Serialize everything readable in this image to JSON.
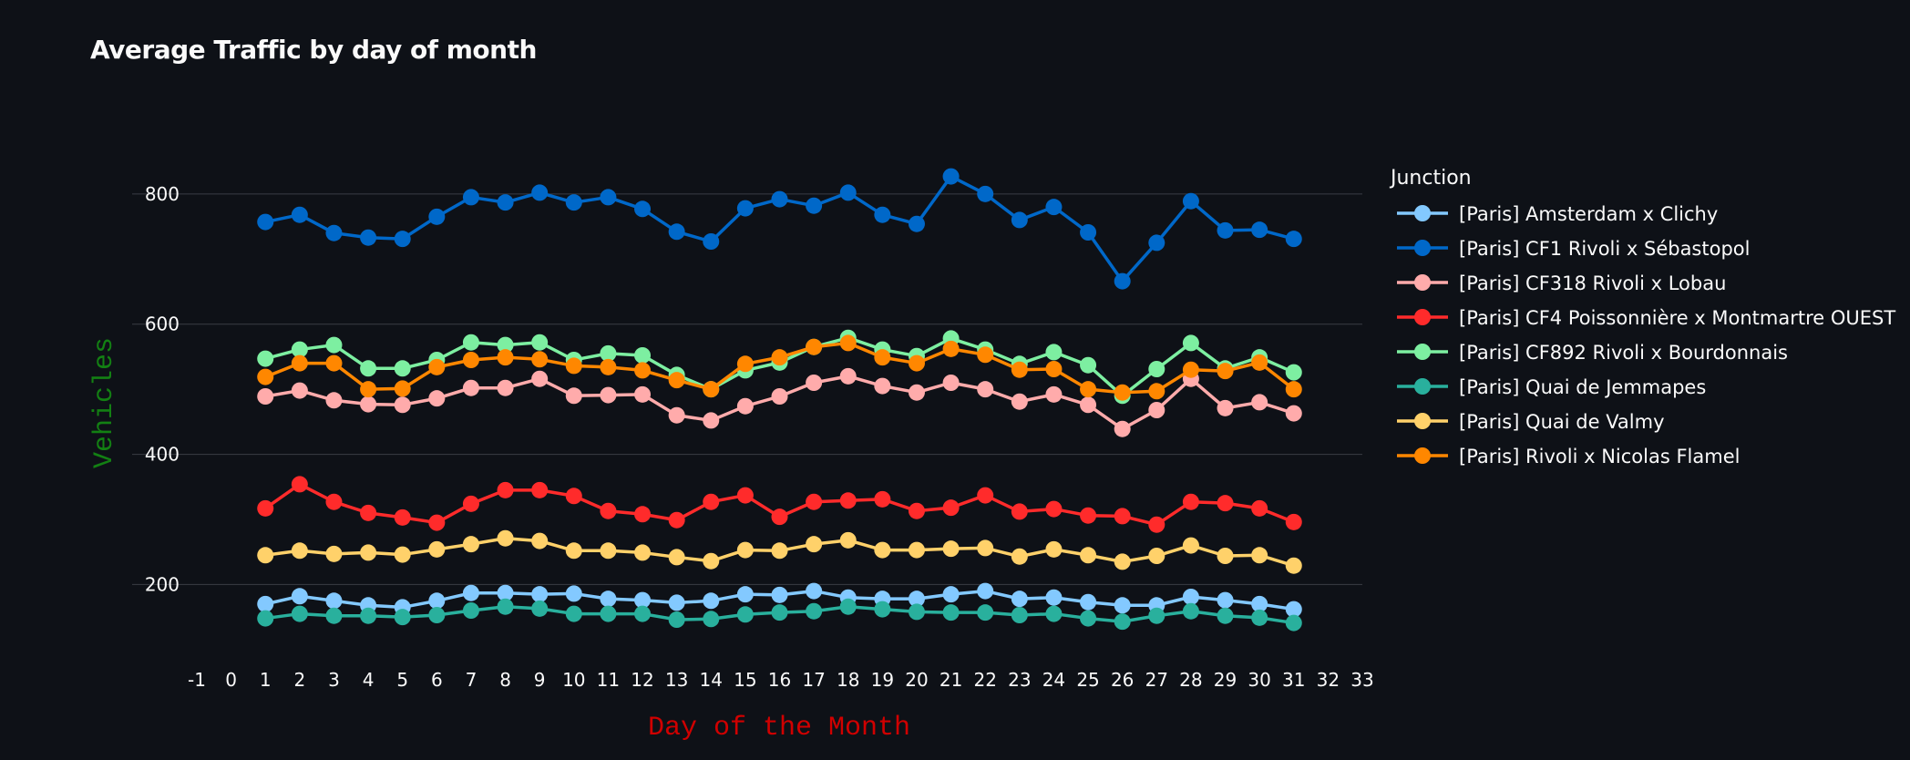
{
  "chart_data": {
    "type": "line",
    "title": "Average Traffic by day of month",
    "xlabel": "Day of the Month",
    "ylabel": "Vehicles",
    "xlim": [
      -1,
      33
    ],
    "ylim": [
      90,
      930
    ],
    "x_ticks": [
      -1,
      0,
      1,
      2,
      3,
      4,
      5,
      6,
      7,
      8,
      9,
      10,
      11,
      12,
      13,
      14,
      15,
      16,
      17,
      18,
      19,
      20,
      21,
      22,
      23,
      24,
      25,
      26,
      27,
      28,
      29,
      30,
      31,
      32,
      33
    ],
    "y_ticks": [
      200,
      400,
      600,
      800
    ],
    "grid": "horizontal",
    "legend_placement": "right",
    "legend_title": "Junction",
    "x": [
      1,
      2,
      3,
      4,
      5,
      6,
      7,
      8,
      9,
      10,
      11,
      12,
      13,
      14,
      15,
      16,
      17,
      18,
      19,
      20,
      21,
      22,
      23,
      24,
      25,
      26,
      27,
      28,
      29,
      30,
      31
    ],
    "series": [
      {
        "name": "[Paris] Amsterdam x Clichy",
        "color": "#83c9ff",
        "values": [
          170,
          182,
          175,
          168,
          165,
          175,
          187,
          187,
          185,
          186,
          178,
          176,
          172,
          175,
          185,
          184,
          190,
          180,
          178,
          178,
          185,
          190,
          178,
          180,
          173,
          168,
          168,
          181,
          176,
          170,
          162
        ]
      },
      {
        "name": "[Paris] CF1 Rivoli x Sébastopol",
        "color": "#0068c9",
        "values": [
          757,
          768,
          740,
          733,
          731,
          765,
          795,
          787,
          802,
          787,
          795,
          777,
          742,
          727,
          778,
          792,
          782,
          802,
          768,
          754,
          827,
          800,
          760,
          780,
          741,
          666,
          725,
          789,
          744,
          745,
          731
        ]
      },
      {
        "name": "[Paris] CF318 Rivoli x Lobau",
        "color": "#ffabab",
        "values": [
          489,
          498,
          483,
          477,
          476,
          486,
          502,
          502,
          516,
          490,
          491,
          492,
          460,
          452,
          474,
          489,
          510,
          520,
          505,
          495,
          510,
          500,
          481,
          492,
          476,
          439,
          468,
          516,
          471,
          480,
          463
        ]
      },
      {
        "name": "[Paris] CF4 Poissonnière x Montmartre OUEST",
        "color": "#ff2b2b",
        "values": [
          317,
          354,
          327,
          310,
          303,
          295,
          324,
          345,
          345,
          336,
          313,
          308,
          299,
          327,
          337,
          304,
          327,
          329,
          331,
          313,
          318,
          337,
          312,
          316,
          306,
          305,
          292,
          327,
          325,
          317,
          296
        ]
      },
      {
        "name": "[Paris] CF892 Rivoli x Bourdonnais",
        "color": "#7defa1",
        "values": [
          547,
          561,
          568,
          532,
          532,
          545,
          572,
          568,
          572,
          545,
          555,
          552,
          522,
          500,
          529,
          541,
          565,
          579,
          561,
          551,
          578,
          561,
          539,
          557,
          537,
          490,
          531,
          571,
          532,
          549,
          526
        ]
      },
      {
        "name": "[Paris] Quai de Jemmapes",
        "color": "#29b09d",
        "values": [
          148,
          155,
          152,
          152,
          150,
          153,
          160,
          166,
          163,
          155,
          155,
          155,
          146,
          147,
          154,
          157,
          159,
          166,
          162,
          158,
          157,
          157,
          153,
          155,
          148,
          143,
          152,
          159,
          152,
          149,
          141
        ]
      },
      {
        "name": "[Paris] Quai de Valmy",
        "color": "#ffd16a",
        "values": [
          245,
          252,
          247,
          249,
          246,
          254,
          262,
          271,
          267,
          252,
          252,
          249,
          242,
          236,
          253,
          252,
          262,
          268,
          253,
          253,
          255,
          256,
          243,
          254,
          245,
          235,
          244,
          260,
          244,
          245,
          229
        ]
      },
      {
        "name": "[Paris] Rivoli x Nicolas Flamel",
        "color": "#ff8700",
        "values": [
          519,
          540,
          540,
          500,
          501,
          534,
          545,
          549,
          546,
          536,
          534,
          529,
          514,
          500,
          539,
          549,
          565,
          571,
          549,
          540,
          562,
          553,
          530,
          531,
          500,
          495,
          497,
          530,
          528,
          541,
          500
        ]
      }
    ]
  }
}
